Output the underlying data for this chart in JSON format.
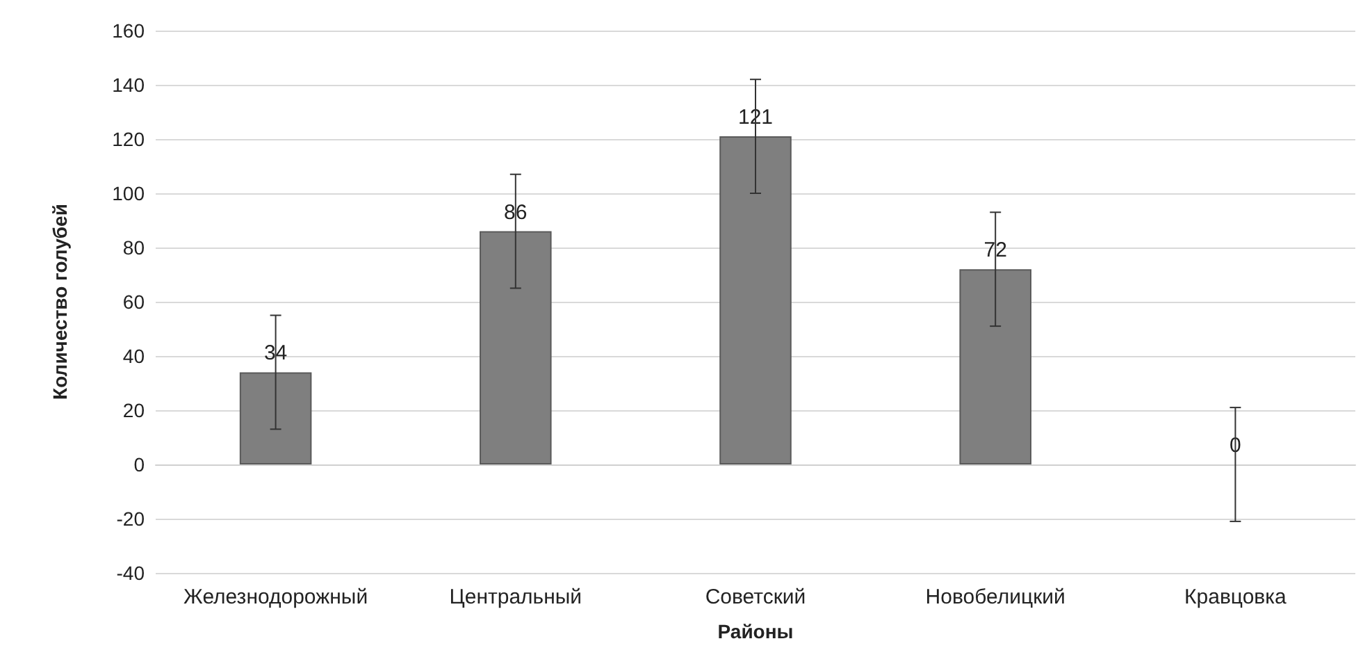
{
  "chart_data": {
    "type": "bar",
    "xlabel": "Районы",
    "ylabel": "Количество голубей",
    "categories": [
      "Железнодорожный",
      "Центральный",
      "Советский",
      "Новобелицкий",
      "Кравцовка"
    ],
    "values": [
      34,
      86,
      121,
      72,
      0
    ],
    "errors": [
      21,
      21,
      21,
      21,
      21
    ],
    "color": "#7f7f7f",
    "data_labels": true,
    "ylim": [
      -40,
      160
    ],
    "yticks": [
      -40,
      -20,
      0,
      20,
      40,
      60,
      80,
      100,
      120,
      140,
      160
    ],
    "grid": "y"
  }
}
